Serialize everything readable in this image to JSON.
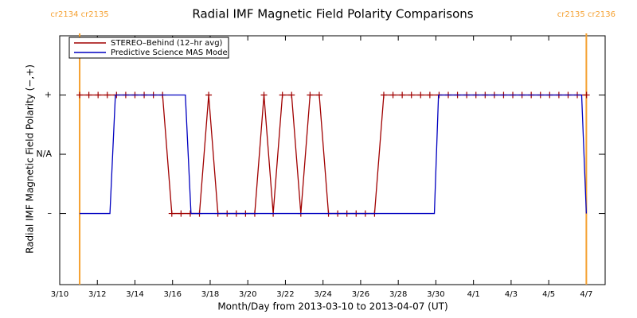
{
  "chart_data": {
    "type": "line",
    "title": "Radial IMF Magnetic Field Polarity Comparisons",
    "xlabel": "Month/Day from 2013-03-10 to 2013-04-07 (UT)",
    "ylabel": "Radial IMF Magnetic Field Polarity (−,+)",
    "xlim": [
      0,
      29
    ],
    "ylim": [
      -2.2,
      2
    ],
    "xticks": [
      {
        "value": 0,
        "label": "3/10"
      },
      {
        "value": 2,
        "label": "3/12"
      },
      {
        "value": 4,
        "label": "3/14"
      },
      {
        "value": 6,
        "label": "3/16"
      },
      {
        "value": 8,
        "label": "3/18"
      },
      {
        "value": 10,
        "label": "3/20"
      },
      {
        "value": 12,
        "label": "3/22"
      },
      {
        "value": 14,
        "label": "3/24"
      },
      {
        "value": 16,
        "label": "3/26"
      },
      {
        "value": 18,
        "label": "3/28"
      },
      {
        "value": 20,
        "label": "3/30"
      },
      {
        "value": 22,
        "label": "4/1"
      },
      {
        "value": 24,
        "label": "4/3"
      },
      {
        "value": 26,
        "label": "4/5"
      },
      {
        "value": 28,
        "label": "4/7"
      }
    ],
    "yticks": [
      {
        "value": -1,
        "label": "–"
      },
      {
        "value": 0,
        "label": "N/A"
      },
      {
        "value": 1,
        "label": "+"
      }
    ],
    "legend": "top-left",
    "markers": [
      {
        "x": 1.06,
        "label": "cr2134 cr2135",
        "color": "#f5a030"
      },
      {
        "x": 28.0,
        "label": "cr2135 cr2136",
        "color": "#f5a030"
      }
    ],
    "series": [
      {
        "name": "STEREO–Behind (12–hr avg)",
        "color": "#a00000",
        "marker": "+",
        "x": [
          1.06,
          1.55,
          2.04,
          2.53,
          3.02,
          3.51,
          4.0,
          4.49,
          4.98,
          5.47,
          5.96,
          6.45,
          6.94,
          7.43,
          7.92,
          8.41,
          8.9,
          9.39,
          9.88,
          10.37,
          10.86,
          11.35,
          11.84,
          12.33,
          12.82,
          13.31,
          13.8,
          14.29,
          14.78,
          15.27,
          15.76,
          16.25,
          16.74,
          17.23,
          17.72,
          18.21,
          18.7,
          19.19,
          19.68,
          20.17,
          20.66,
          21.15,
          21.64,
          22.13,
          22.62,
          23.11,
          23.6,
          24.09,
          24.58,
          25.07,
          25.56,
          26.05,
          26.54,
          27.03,
          27.52,
          28.01
        ],
        "values": [
          1,
          1,
          1,
          1,
          1,
          1,
          1,
          1,
          1,
          1,
          -1,
          -1,
          -1,
          -1,
          1,
          -1,
          -1,
          -1,
          -1,
          -1,
          1,
          -1,
          1,
          1,
          -1,
          1,
          1,
          -1,
          -1,
          -1,
          -1,
          -1,
          -1,
          1,
          1,
          1,
          1,
          1,
          1,
          1,
          1,
          1,
          1,
          1,
          1,
          1,
          1,
          1,
          1,
          1,
          1,
          1,
          1,
          1,
          1,
          1
        ]
      },
      {
        "name": "Predictive Science MAS Model",
        "color": "#0000c0",
        "x": [
          1.06,
          2.67,
          2.96,
          6.68,
          6.98,
          19.92,
          20.14,
          27.75,
          28.0
        ],
        "values": [
          -1,
          -1,
          1,
          1,
          -1,
          -1,
          1,
          1,
          -1
        ]
      }
    ]
  }
}
